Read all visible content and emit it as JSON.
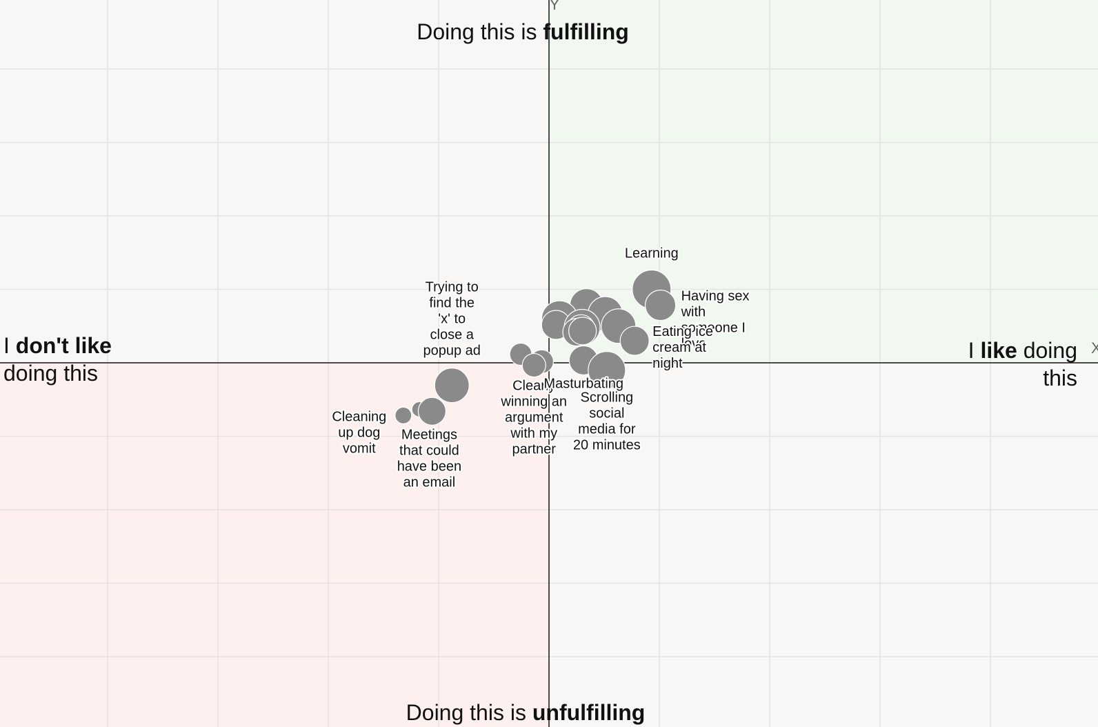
{
  "chart_data": {
    "type": "scatter",
    "xlim": [
      -10,
      10
    ],
    "ylim": [
      -10,
      10
    ],
    "grid": true,
    "axis_letters": {
      "x": "X",
      "y": "Y"
    },
    "titles": {
      "top": {
        "pre": "Doing this is ",
        "bold": "fulfilling"
      },
      "bottom": {
        "pre": "Doing this is ",
        "bold": "unfulfilling"
      },
      "left": {
        "pre": "I ",
        "bold": "don't like",
        "line2": "doing this"
      },
      "right": {
        "pre": "I ",
        "bold": "like",
        "post": " doing",
        "line2": "this"
      }
    },
    "colors": {
      "background": "#f8f7f6",
      "fulfilling_liked": "#f1f8f0",
      "unfulfilling_disliked": "#fdf0ef",
      "point": "#8a8a8a",
      "grid": "#e3e3e3",
      "axis": "#111111"
    },
    "points": [
      {
        "label": "Learning",
        "x": 4.65,
        "y": 3.0,
        "size": 28
      },
      {
        "label": "Having sex with someone I love",
        "x": 5.05,
        "y": 2.35,
        "size": 22
      },
      {
        "label": "",
        "x": 1.7,
        "y": 2.35,
        "size": 24
      },
      {
        "label": "",
        "x": 2.55,
        "y": 2.0,
        "size": 25
      },
      {
        "label": "",
        "x": 0.48,
        "y": 1.8,
        "size": 26
      },
      {
        "label": "",
        "x": 0.32,
        "y": 1.55,
        "size": 21
      },
      {
        "label": "",
        "x": 1.5,
        "y": 1.45,
        "size": 26
      },
      {
        "label": "",
        "x": 1.45,
        "y": 1.4,
        "size": 20
      },
      {
        "label": "",
        "x": 3.15,
        "y": 1.5,
        "size": 25
      },
      {
        "label": "",
        "x": 1.25,
        "y": 1.25,
        "size": 20
      },
      {
        "label": "",
        "x": 1.52,
        "y": 1.3,
        "size": 20
      },
      {
        "label": "Eating ice cream at night",
        "x": 3.88,
        "y": 0.9,
        "size": 21
      },
      {
        "label": "",
        "x": -1.28,
        "y": 0.35,
        "size": 16
      },
      {
        "label": "",
        "x": -0.33,
        "y": 0.05,
        "size": 17
      },
      {
        "label": "Clearly winning an argument with my partner",
        "x": -0.68,
        "y": -0.1,
        "size": 17
      },
      {
        "label": "Masturbating",
        "x": 1.57,
        "y": 0.1,
        "size": 21
      },
      {
        "label": "Scrolling social media for 20 minutes",
        "x": 2.62,
        "y": -0.3,
        "size": 27
      },
      {
        "label": "Trying to find the 'x' to close a popup ad",
        "x": -4.4,
        "y": -0.92,
        "size": 25
      },
      {
        "label": "",
        "x": -5.87,
        "y": -1.9,
        "size": 11
      },
      {
        "label": "Meetings that could have been an email",
        "x": -5.3,
        "y": -1.98,
        "size": 20
      },
      {
        "label": "Cleaning up dog vomit",
        "x": -6.6,
        "y": -2.15,
        "size": 12
      }
    ]
  }
}
